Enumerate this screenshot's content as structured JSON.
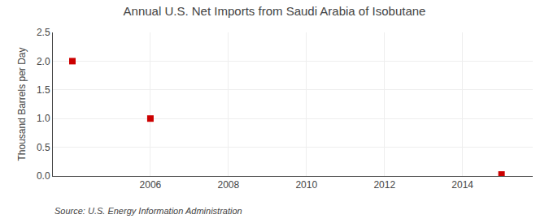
{
  "chart_data": {
    "type": "scatter",
    "title": "Annual U.S. Net Imports from Saudi Arabia of Isobutane",
    "ylabel": "Thousand Barrels per Day",
    "annotations": [
      "Source: U.S. Energy Information Administration"
    ],
    "x": [
      2004,
      2006,
      2015
    ],
    "values": [
      2.0,
      1.0,
      0.026
    ],
    "color": "#cc0000",
    "marker": "square",
    "xlim": [
      2003.5,
      2015.8
    ],
    "xticks": [
      2006,
      2008,
      2010,
      2012,
      2014
    ],
    "ylim": [
      0,
      2.5
    ],
    "yticks": [
      {
        "value": 0,
        "label": "0.0"
      },
      0.5,
      {
        "value": 1,
        "label": "1.0"
      },
      1.5,
      {
        "value": 2,
        "label": "2.0"
      },
      2.5
    ],
    "grid": true
  }
}
